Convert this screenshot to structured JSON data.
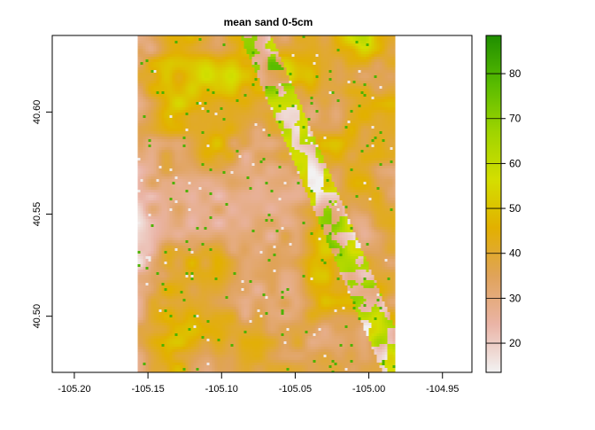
{
  "chart_data": {
    "type": "heatmap",
    "title": "mean sand 0-5cm",
    "xlabel": "",
    "ylabel": "",
    "x_ticks": [
      "-105.20",
      "-105.15",
      "-105.10",
      "-105.05",
      "-105.00",
      "-104.95"
    ],
    "x_tick_values": [
      -105.2,
      -105.15,
      -105.1,
      -105.05,
      -105.0,
      -104.95
    ],
    "y_ticks": [
      "40.50",
      "40.55",
      "40.60"
    ],
    "y_tick_values": [
      40.5,
      40.55,
      40.6
    ],
    "xlim": [
      -105.215,
      -104.93
    ],
    "ylim": [
      40.4725,
      40.6375
    ],
    "raster_extent": {
      "x": [
        -105.157,
        -104.982
      ],
      "y": [
        40.4725,
        40.6375
      ]
    },
    "legend": {
      "ticks": [
        "20",
        "30",
        "40",
        "50",
        "60",
        "70",
        "80"
      ],
      "tick_values": [
        20,
        30,
        40,
        50,
        60,
        70,
        80
      ],
      "range": [
        13.5,
        88.5
      ],
      "colors": [
        "#f2f2f2",
        "#eab4a6",
        "#e0a35a",
        "#e2b000",
        "#d4de00",
        "#9fd400",
        "#58bb00",
        "#1f8e00"
      ]
    },
    "value_range_estimate": [
      14,
      88
    ],
    "dominant_value_estimate": 38
  }
}
